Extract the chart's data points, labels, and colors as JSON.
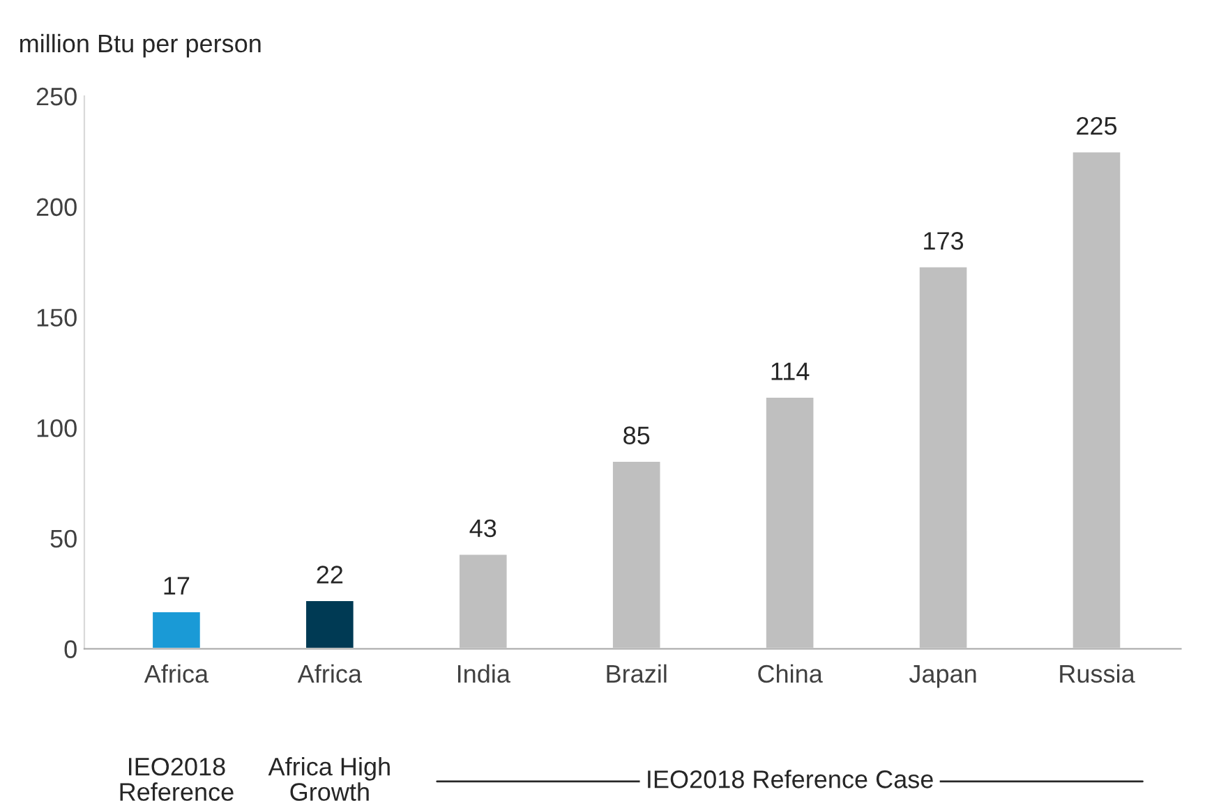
{
  "chart_data": {
    "type": "bar",
    "ylabel": "million Btu per person",
    "categories": [
      "Africa",
      "Africa",
      "India",
      "Brazil",
      "China",
      "Japan",
      "Russia"
    ],
    "values": [
      17,
      22,
      43,
      85,
      114,
      173,
      225
    ],
    "colors": [
      "#1a9ad6",
      "#003a54",
      "#bfbfbf",
      "#bfbfbf",
      "#bfbfbf",
      "#bfbfbf",
      "#bfbfbf"
    ],
    "ylim": [
      0,
      250
    ],
    "yticks": [
      0,
      50,
      100,
      150,
      200,
      250
    ],
    "data_labels": true,
    "grid": false,
    "legend": false,
    "annotations": [
      "IEO2018\nReference",
      "Africa High\nGrowth",
      "IEO2018 Reference Case"
    ]
  }
}
